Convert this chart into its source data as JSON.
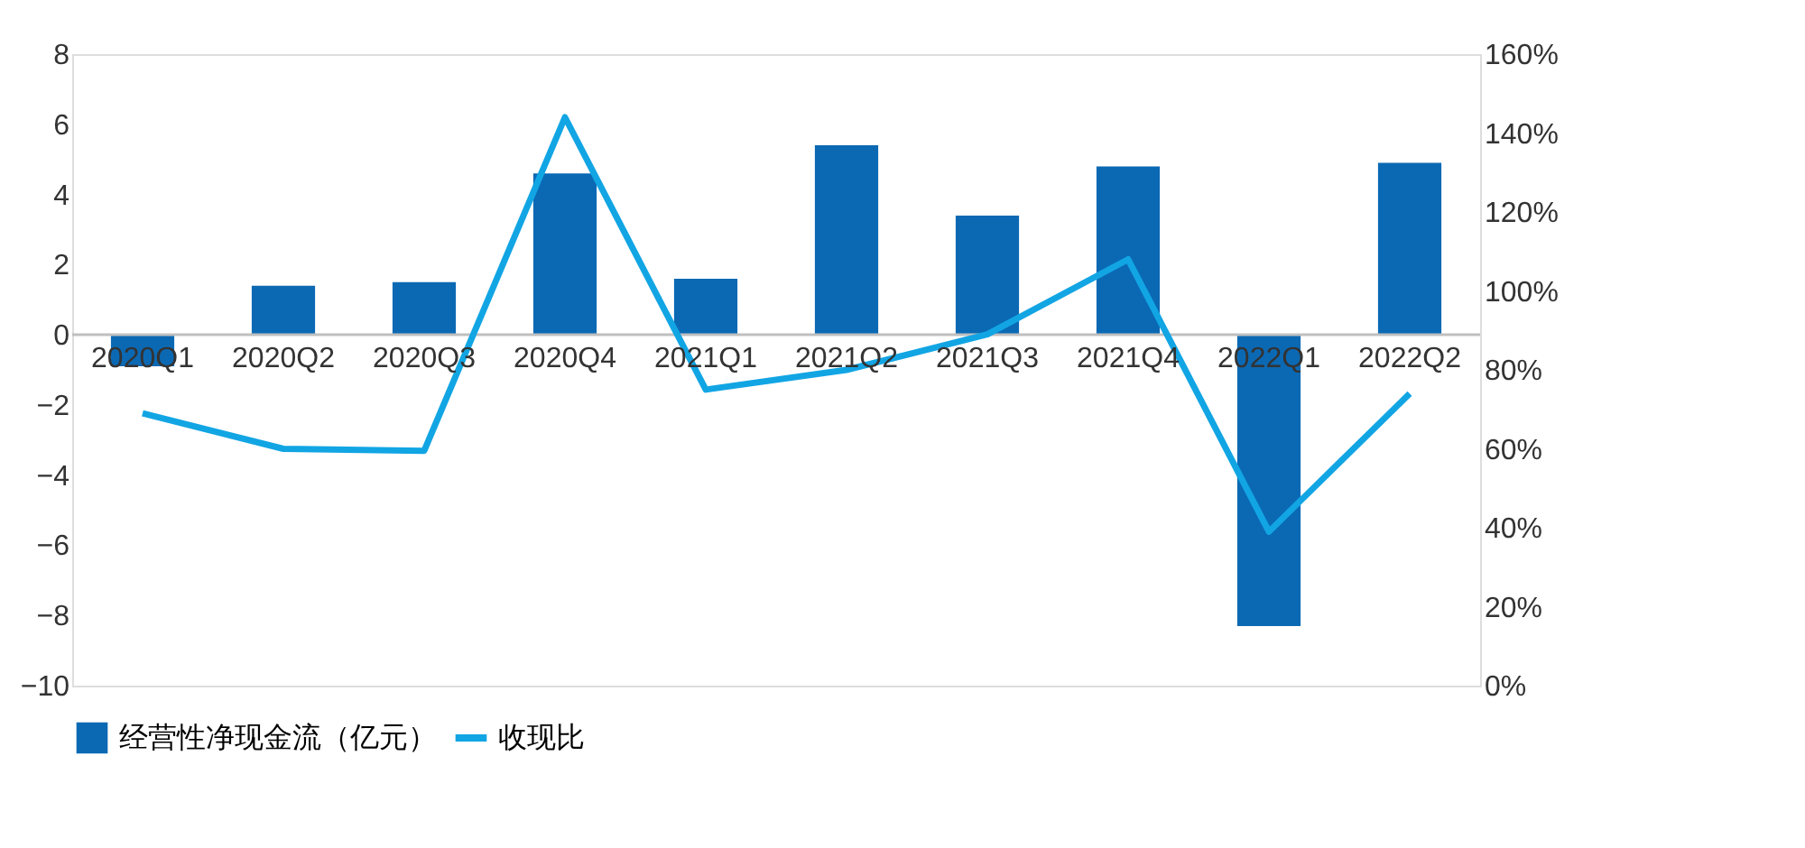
{
  "chart_data": {
    "type": "bar",
    "categories": [
      "2020Q1",
      "2020Q2",
      "2020Q3",
      "2020Q4",
      "2021Q1",
      "2021Q2",
      "2021Q3",
      "2021Q4",
      "2022Q1",
      "2022Q2"
    ],
    "series": [
      {
        "name": "经营性净现金流（亿元）",
        "color": "#0b69b4",
        "values": [
          -0.9,
          1.4,
          1.5,
          4.6,
          1.6,
          5.4,
          3.4,
          4.8,
          -8.3,
          4.9
        ]
      },
      {
        "name": "收现比",
        "color": "#12a5e4",
        "type": "line",
        "axis": "y2",
        "values": [
          69,
          60,
          59.5,
          144,
          75,
          80,
          89,
          108,
          39,
          74
        ]
      }
    ],
    "ylim": [
      -10,
      8
    ],
    "yticks": [
      -10,
      -8,
      -6,
      -4,
      -2,
      0,
      2,
      4,
      6,
      8
    ],
    "y2lim": [
      0,
      160
    ],
    "y2ticks": [
      {
        "value": 0,
        "label": "0%"
      },
      {
        "value": 20,
        "label": "20%"
      },
      {
        "value": 40,
        "label": "40%"
      },
      {
        "value": 60,
        "label": "60%"
      },
      {
        "value": 80,
        "label": "80%"
      },
      {
        "value": 100,
        "label": "100%"
      },
      {
        "value": 120,
        "label": "120%"
      },
      {
        "value": 140,
        "label": "140%"
      },
      {
        "value": 160,
        "label": "160%"
      }
    ],
    "grid": false,
    "legend": "bottom",
    "marker": "none",
    "line_style": "solid"
  }
}
